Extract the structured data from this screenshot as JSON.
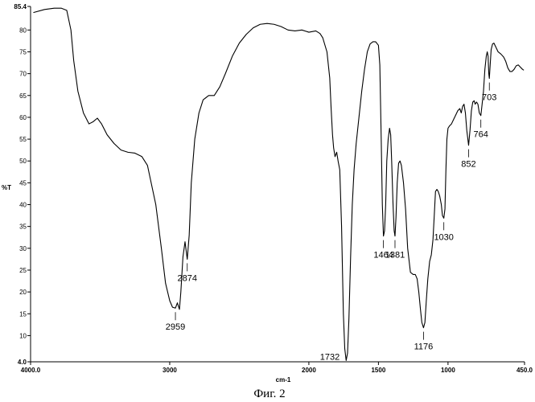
{
  "chart_data": {
    "type": "line",
    "caption": "Фиг. 2",
    "xlabel": "cm-1",
    "ylabel": "%T",
    "xlim": [
      4000.0,
      450.0
    ],
    "ylim": [
      4.0,
      85.4
    ],
    "grid": false,
    "x_tick_labels": [
      {
        "value": 4000,
        "text": "4000.0"
      },
      {
        "value": 3000,
        "text": "3000"
      },
      {
        "value": 2000,
        "text": "2000"
      },
      {
        "value": 1500,
        "text": "1500"
      },
      {
        "value": 1000,
        "text": "1000"
      },
      {
        "value": 450,
        "text": "450.0"
      }
    ],
    "y_tick_labels": [
      {
        "value": 85.4,
        "text": "85.4"
      },
      {
        "value": 80,
        "text": "80"
      },
      {
        "value": 75,
        "text": "75"
      },
      {
        "value": 70,
        "text": "70"
      },
      {
        "value": 65,
        "text": "65"
      },
      {
        "value": 60,
        "text": "60"
      },
      {
        "value": 55,
        "text": "55"
      },
      {
        "value": 50,
        "text": "50"
      },
      {
        "value": 45,
        "text": "45"
      },
      {
        "value": 40,
        "text": "40"
      },
      {
        "value": 35,
        "text": "35"
      },
      {
        "value": 30,
        "text": "30"
      },
      {
        "value": 25,
        "text": "25"
      },
      {
        "value": 20,
        "text": "20"
      },
      {
        "value": 15,
        "text": "15"
      },
      {
        "value": 10,
        "text": "10"
      },
      {
        "value": 4.0,
        "text": "4.0"
      }
    ],
    "peak_labels": [
      {
        "text": "2959",
        "x": 2959,
        "y": 16.3,
        "side": "below"
      },
      {
        "text": "2874",
        "x": 2874,
        "y": 27.5,
        "side": "below"
      },
      {
        "text": "1732",
        "x": 1732,
        "y": 4.3,
        "side": "left"
      },
      {
        "text": "1464",
        "x": 1464,
        "y": 32.8,
        "side": "below"
      },
      {
        "text": "1381",
        "x": 1381,
        "y": 32.8,
        "side": "below"
      },
      {
        "text": "1176",
        "x": 1176,
        "y": 11.8,
        "side": "below"
      },
      {
        "text": "1030",
        "x": 1030,
        "y": 36.9,
        "side": "below"
      },
      {
        "text": "852",
        "x": 852,
        "y": 53.6,
        "side": "below"
      },
      {
        "text": "764",
        "x": 764,
        "y": 60.4,
        "side": "below"
      },
      {
        "text": "703",
        "x": 703,
        "y": 68.9,
        "side": "below"
      }
    ],
    "series": [
      {
        "points": [
          [
            3980,
            84.0
          ],
          [
            3900,
            84.7
          ],
          [
            3830,
            85.0
          ],
          [
            3780,
            85.0
          ],
          [
            3740,
            84.5
          ],
          [
            3710,
            80.0
          ],
          [
            3690,
            73.0
          ],
          [
            3660,
            66.0
          ],
          [
            3620,
            61.0
          ],
          [
            3580,
            58.5
          ],
          [
            3550,
            59.0
          ],
          [
            3520,
            59.8
          ],
          [
            3490,
            58.5
          ],
          [
            3450,
            56.0
          ],
          [
            3400,
            54.0
          ],
          [
            3350,
            52.5
          ],
          [
            3300,
            52.0
          ],
          [
            3250,
            51.8
          ],
          [
            3200,
            51.0
          ],
          [
            3160,
            49.0
          ],
          [
            3140,
            46.0
          ],
          [
            3100,
            40.0
          ],
          [
            3060,
            30.0
          ],
          [
            3030,
            22.0
          ],
          [
            3000,
            18.0
          ],
          [
            2980,
            16.5
          ],
          [
            2959,
            16.3
          ],
          [
            2945,
            17.5
          ],
          [
            2930,
            16.0
          ],
          [
            2920,
            20.0
          ],
          [
            2905,
            28.0
          ],
          [
            2890,
            31.5
          ],
          [
            2874,
            27.5
          ],
          [
            2860,
            33.0
          ],
          [
            2845,
            45.0
          ],
          [
            2820,
            55.0
          ],
          [
            2790,
            61.0
          ],
          [
            2760,
            64.0
          ],
          [
            2720,
            65.0
          ],
          [
            2680,
            65.0
          ],
          [
            2640,
            67.0
          ],
          [
            2600,
            70.0
          ],
          [
            2550,
            74.0
          ],
          [
            2500,
            77.0
          ],
          [
            2450,
            79.0
          ],
          [
            2400,
            80.5
          ],
          [
            2350,
            81.3
          ],
          [
            2300,
            81.5
          ],
          [
            2250,
            81.3
          ],
          [
            2200,
            80.8
          ],
          [
            2150,
            80.0
          ],
          [
            2100,
            79.8
          ],
          [
            2050,
            80.0
          ],
          [
            2000,
            79.5
          ],
          [
            1950,
            79.8
          ],
          [
            1920,
            79.2
          ],
          [
            1900,
            78.2
          ],
          [
            1870,
            75.0
          ],
          [
            1850,
            69.0
          ],
          [
            1840,
            62.0
          ],
          [
            1830,
            56.0
          ],
          [
            1822,
            53.0
          ],
          [
            1812,
            51.0
          ],
          [
            1800,
            52.0
          ],
          [
            1790,
            50.0
          ],
          [
            1778,
            48.0
          ],
          [
            1765,
            35.0
          ],
          [
            1752,
            15.0
          ],
          [
            1742,
            7.0
          ],
          [
            1732,
            4.3
          ],
          [
            1722,
            6.0
          ],
          [
            1712,
            14.0
          ],
          [
            1700,
            28.0
          ],
          [
            1688,
            40.0
          ],
          [
            1675,
            48.0
          ],
          [
            1660,
            54.0
          ],
          [
            1640,
            60.0
          ],
          [
            1620,
            66.0
          ],
          [
            1600,
            71.0
          ],
          [
            1580,
            75.0
          ],
          [
            1560,
            76.8
          ],
          [
            1540,
            77.3
          ],
          [
            1520,
            77.3
          ],
          [
            1500,
            76.5
          ],
          [
            1490,
            72.0
          ],
          [
            1480,
            55.0
          ],
          [
            1472,
            40.0
          ],
          [
            1464,
            32.8
          ],
          [
            1456,
            34.0
          ],
          [
            1448,
            40.0
          ],
          [
            1440,
            50.0
          ],
          [
            1430,
            55.0
          ],
          [
            1420,
            57.5
          ],
          [
            1412,
            56.0
          ],
          [
            1405,
            50.0
          ],
          [
            1395,
            40.0
          ],
          [
            1387,
            34.0
          ],
          [
            1381,
            32.8
          ],
          [
            1374,
            37.0
          ],
          [
            1365,
            45.0
          ],
          [
            1355,
            49.5
          ],
          [
            1345,
            50.0
          ],
          [
            1335,
            49.0
          ],
          [
            1320,
            45.0
          ],
          [
            1305,
            39.0
          ],
          [
            1290,
            30.0
          ],
          [
            1270,
            24.5
          ],
          [
            1250,
            24.0
          ],
          [
            1235,
            24.0
          ],
          [
            1222,
            23.0
          ],
          [
            1210,
            20.0
          ],
          [
            1198,
            16.0
          ],
          [
            1188,
            13.0
          ],
          [
            1176,
            11.8
          ],
          [
            1166,
            13.0
          ],
          [
            1156,
            18.0
          ],
          [
            1145,
            23.0
          ],
          [
            1132,
            27.0
          ],
          [
            1120,
            28.5
          ],
          [
            1108,
            32.0
          ],
          [
            1098,
            38.0
          ],
          [
            1090,
            43.0
          ],
          [
            1080,
            43.5
          ],
          [
            1070,
            43.0
          ],
          [
            1060,
            42.0
          ],
          [
            1048,
            40.0
          ],
          [
            1040,
            37.5
          ],
          [
            1030,
            36.9
          ],
          [
            1022,
            39.0
          ],
          [
            1015,
            48.0
          ],
          [
            1008,
            55.0
          ],
          [
            1000,
            57.5
          ],
          [
            990,
            58.0
          ],
          [
            975,
            58.5
          ],
          [
            960,
            59.5
          ],
          [
            945,
            60.5
          ],
          [
            930,
            61.5
          ],
          [
            915,
            62.0
          ],
          [
            905,
            61.0
          ],
          [
            895,
            62.5
          ],
          [
            885,
            63.0
          ],
          [
            875,
            61.0
          ],
          [
            865,
            57.0
          ],
          [
            852,
            53.6
          ],
          [
            842,
            57.0
          ],
          [
            832,
            61.5
          ],
          [
            822,
            63.5
          ],
          [
            812,
            63.8
          ],
          [
            805,
            63.0
          ],
          [
            795,
            63.5
          ],
          [
            785,
            63.0
          ],
          [
            775,
            61.0
          ],
          [
            764,
            60.4
          ],
          [
            755,
            63.0
          ],
          [
            745,
            66.0
          ],
          [
            735,
            71.0
          ],
          [
            725,
            74.0
          ],
          [
            718,
            75.0
          ],
          [
            712,
            74.0
          ],
          [
            707,
            70.0
          ],
          [
            703,
            68.9
          ],
          [
            697,
            72.0
          ],
          [
            690,
            75.5
          ],
          [
            680,
            76.8
          ],
          [
            670,
            77.0
          ],
          [
            655,
            76.0
          ],
          [
            640,
            75.0
          ],
          [
            620,
            74.5
          ],
          [
            600,
            73.8
          ],
          [
            585,
            72.8
          ],
          [
            570,
            71.3
          ],
          [
            555,
            70.5
          ],
          [
            540,
            70.5
          ],
          [
            525,
            71.0
          ],
          [
            510,
            71.8
          ],
          [
            495,
            72.0
          ],
          [
            480,
            71.5
          ],
          [
            465,
            71.0
          ],
          [
            455,
            70.8
          ]
        ]
      }
    ]
  }
}
